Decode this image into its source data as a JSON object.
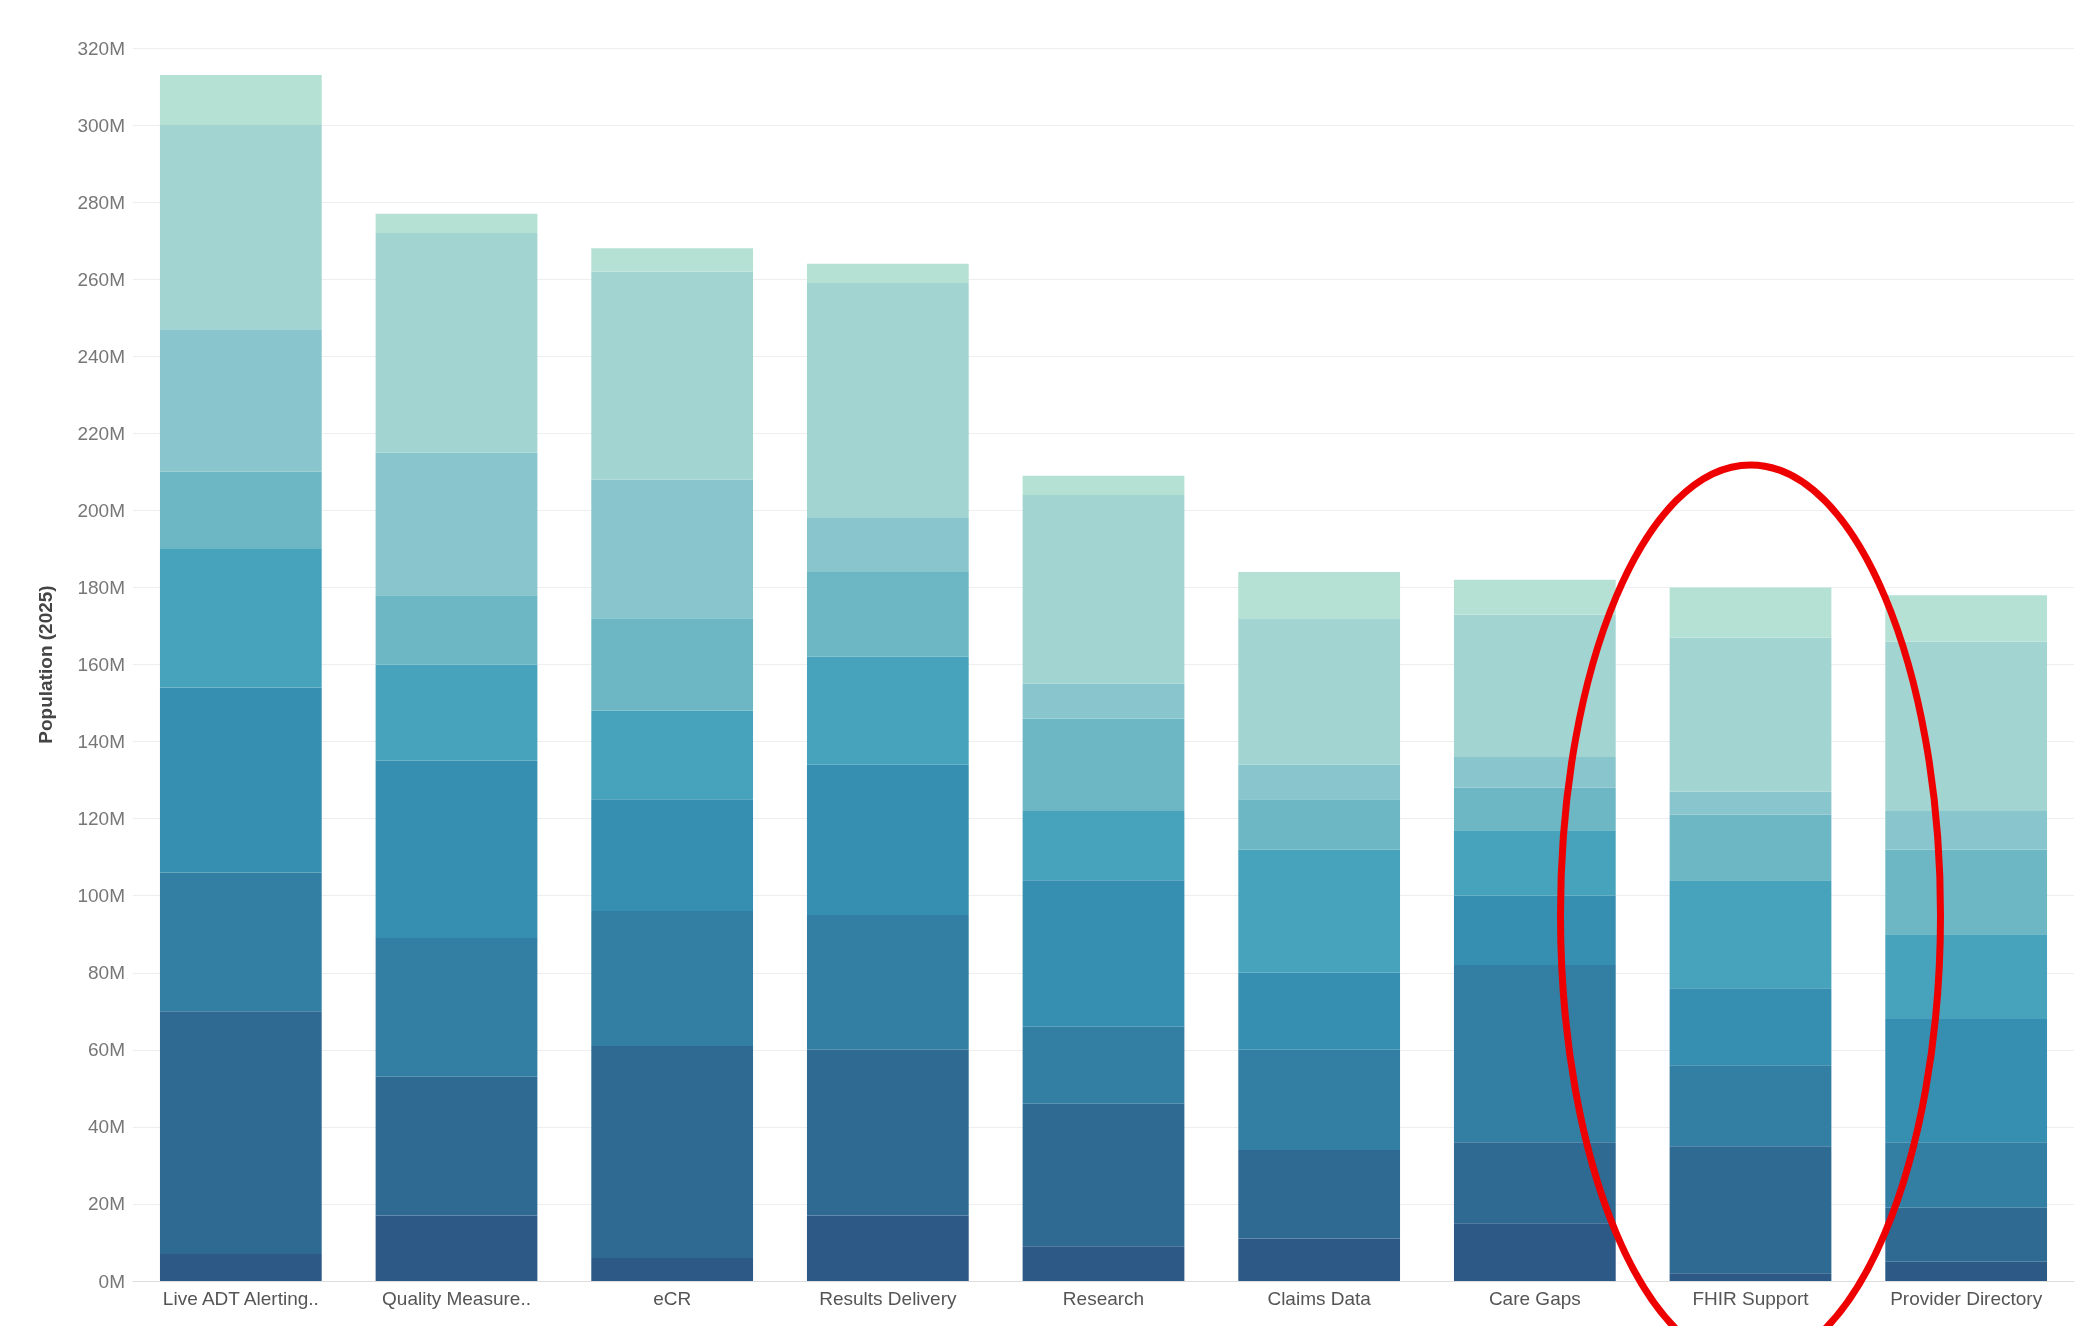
{
  "chart_data": {
    "type": "bar",
    "stacked": true,
    "ylabel": "Population (2025)",
    "categories": [
      "Live ADT Alerting..",
      "Quality Measure..",
      "eCR",
      "Results Delivery",
      "Research",
      "Claims Data",
      "Care Gaps",
      "FHIR Support",
      "Provider Directory"
    ],
    "series": [
      {
        "color": "#2c5985",
        "values": [
          7,
          17,
          6,
          17,
          9,
          11,
          15,
          2,
          5
        ]
      },
      {
        "color": "#2f6a93",
        "values": [
          63,
          36,
          55,
          43,
          37,
          23,
          21,
          33,
          14
        ]
      },
      {
        "color": "#337ea3",
        "values": [
          36,
          36,
          35,
          35,
          20,
          26,
          46,
          21,
          17
        ]
      },
      {
        "color": "#368fb0",
        "values": [
          48,
          46,
          29,
          39,
          38,
          20,
          18,
          20,
          32
        ]
      },
      {
        "color": "#47a3bb",
        "values": [
          36,
          25,
          23,
          28,
          18,
          32,
          17,
          28,
          22
        ]
      },
      {
        "color": "#6db6c4",
        "values": [
          20,
          18,
          24,
          22,
          24,
          13,
          11,
          17,
          22
        ]
      },
      {
        "color": "#88c5cd",
        "values": [
          37,
          37,
          36,
          14,
          9,
          9,
          8,
          6,
          10
        ]
      },
      {
        "color": "#a2d5d1",
        "values": [
          53,
          57,
          54,
          61,
          49,
          38,
          37,
          40,
          44
        ]
      },
      {
        "color": "#b5e1d5",
        "values": [
          13,
          5,
          6,
          5,
          5,
          12,
          9,
          13,
          12
        ]
      }
    ],
    "ylim": [
      0,
      320
    ],
    "yticks": [
      {
        "value": 0,
        "label": "0M"
      },
      {
        "value": 20,
        "label": "20M"
      },
      {
        "value": 40,
        "label": "40M"
      },
      {
        "value": 60,
        "label": "60M"
      },
      {
        "value": 80,
        "label": "80M"
      },
      {
        "value": 100,
        "label": "100M"
      },
      {
        "value": 120,
        "label": "120M"
      },
      {
        "value": 140,
        "label": "140M"
      },
      {
        "value": 160,
        "label": "160M"
      },
      {
        "value": 180,
        "label": "180M"
      },
      {
        "value": 200,
        "label": "200M"
      },
      {
        "value": 220,
        "label": "220M"
      },
      {
        "value": 240,
        "label": "240M"
      },
      {
        "value": 260,
        "label": "260M"
      },
      {
        "value": 280,
        "label": "280M"
      },
      {
        "value": 300,
        "label": "300M"
      },
      {
        "value": 320,
        "label": "320M"
      }
    ],
    "grid": "y"
  }
}
